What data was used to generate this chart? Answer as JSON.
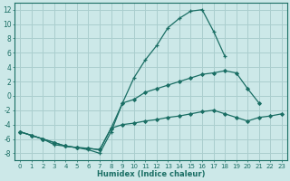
{
  "xlabel": "Humidex (Indice chaleur)",
  "xlim": [
    -0.5,
    23.5
  ],
  "ylim": [
    -9,
    13
  ],
  "yticks": [
    -8,
    -6,
    -4,
    -2,
    0,
    2,
    4,
    6,
    8,
    10,
    12
  ],
  "xticks": [
    0,
    1,
    2,
    3,
    4,
    5,
    6,
    7,
    8,
    9,
    10,
    11,
    12,
    13,
    14,
    15,
    16,
    17,
    18,
    19,
    20,
    21,
    22,
    23
  ],
  "bg_color": "#cce8e8",
  "grid_color": "#aacece",
  "line_color": "#1a6e64",
  "curve1_y": [
    -5.0,
    -5.5,
    -6.0,
    -6.8,
    -7.0,
    -7.2,
    -7.5,
    -8.0,
    -5.0,
    -1.0,
    2.5,
    5.0,
    7.0,
    9.5,
    10.8,
    11.8,
    12.0,
    9.0,
    5.5,
    null,
    null,
    null,
    null,
    null
  ],
  "curve1_marker": "+",
  "curve2_y": [
    -5.0,
    -5.5,
    -6.0,
    -6.5,
    -7.0,
    -7.2,
    -7.3,
    -7.5,
    -4.5,
    -1.0,
    -0.5,
    0.5,
    1.0,
    1.5,
    2.0,
    2.5,
    3.0,
    3.2,
    3.5,
    3.2,
    1.0,
    -1.0,
    null,
    null
  ],
  "curve2_marker": "D",
  "curve3_y": [
    -5.0,
    -5.5,
    -6.0,
    -6.5,
    -7.0,
    -7.2,
    -7.3,
    -7.5,
    -4.5,
    -4.0,
    -3.8,
    -3.5,
    -3.3,
    -3.0,
    -2.8,
    -2.5,
    -2.2,
    -2.0,
    -2.5,
    -3.0,
    -3.5,
    -3.0,
    -2.8,
    -2.5
  ],
  "curve3_marker": "D"
}
